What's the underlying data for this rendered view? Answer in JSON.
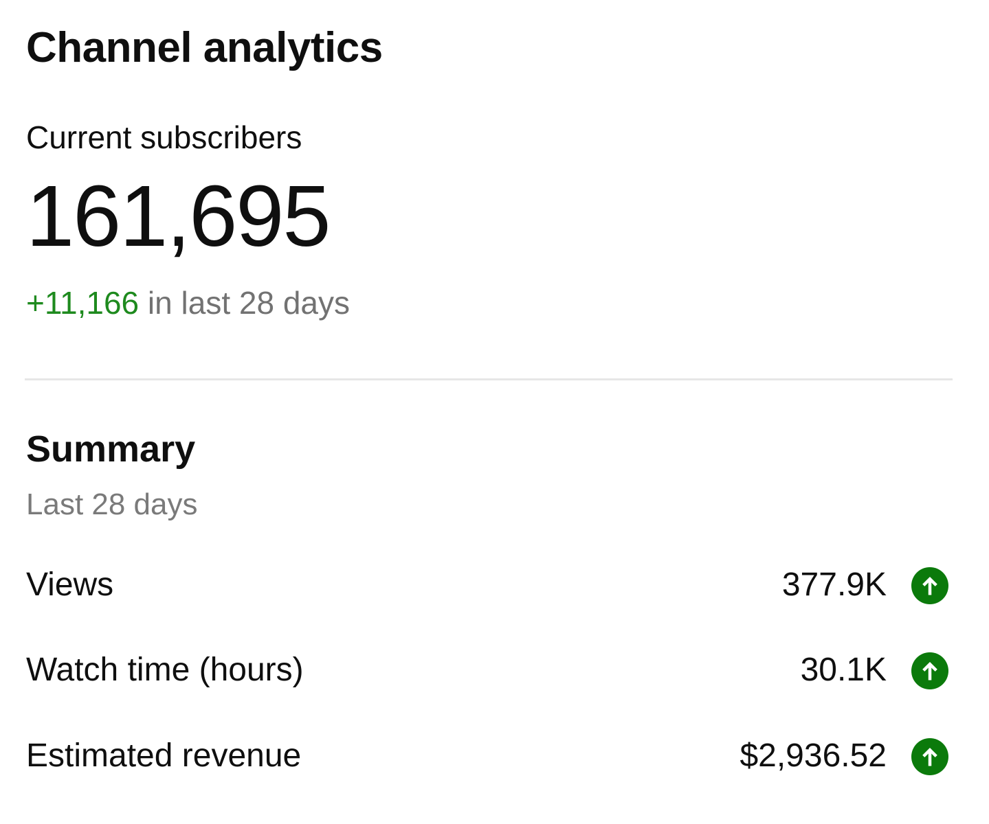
{
  "header": {
    "title": "Channel analytics"
  },
  "subscribers": {
    "label": "Current subscribers",
    "count": "161,695",
    "delta": "+11,166",
    "delta_suffix": " in last 28 days"
  },
  "summary": {
    "title": "Summary",
    "period": "Last 28 days",
    "metrics": [
      {
        "label": "Views",
        "value": "377.9K",
        "trend": "up",
        "icon": "arrow-up-circle-icon"
      },
      {
        "label": "Watch time (hours)",
        "value": "30.1K",
        "trend": "up",
        "icon": "arrow-up-circle-icon"
      },
      {
        "label": "Estimated revenue",
        "value": "$2,936.52",
        "trend": "up",
        "icon": "arrow-up-circle-icon"
      }
    ]
  },
  "colors": {
    "positive": "#1e8a1e",
    "trend_icon": "#0b7a0b",
    "muted_text": "#727272",
    "divider": "#e6e6e6"
  }
}
